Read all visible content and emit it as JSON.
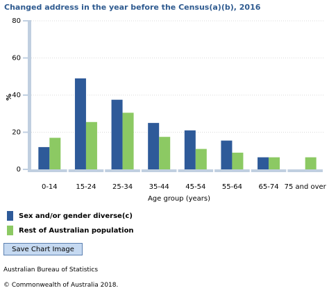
{
  "title": "Changed address in the year before the Census(a)(b), 2016",
  "chart_data": {
    "type": "bar",
    "categories": [
      "0-14",
      "15-24",
      "25-34",
      "35-44",
      "45-54",
      "55-64",
      "65-74",
      "75 and over"
    ],
    "series": [
      {
        "name": "Sex and/or gender diverse(c)",
        "color": "#2e5a99",
        "values": [
          12,
          49,
          37.5,
          25,
          21,
          15.5,
          6.5,
          null
        ]
      },
      {
        "name": "Rest of Australian population",
        "color": "#8cc963",
        "values": [
          17,
          25.5,
          30.5,
          17.5,
          11,
          9,
          6.5,
          6.5
        ]
      }
    ],
    "xlabel": "Age group (years)",
    "ylabel": "%",
    "ylim": [
      0,
      80
    ],
    "yticks": [
      0,
      20,
      40,
      60,
      80
    ],
    "grid": true,
    "legend_position": "bottom-left"
  },
  "save_button": "Save Chart Image",
  "source": "Australian Bureau of Statistics",
  "copyright": "© Commonwealth of Australia 2018."
}
